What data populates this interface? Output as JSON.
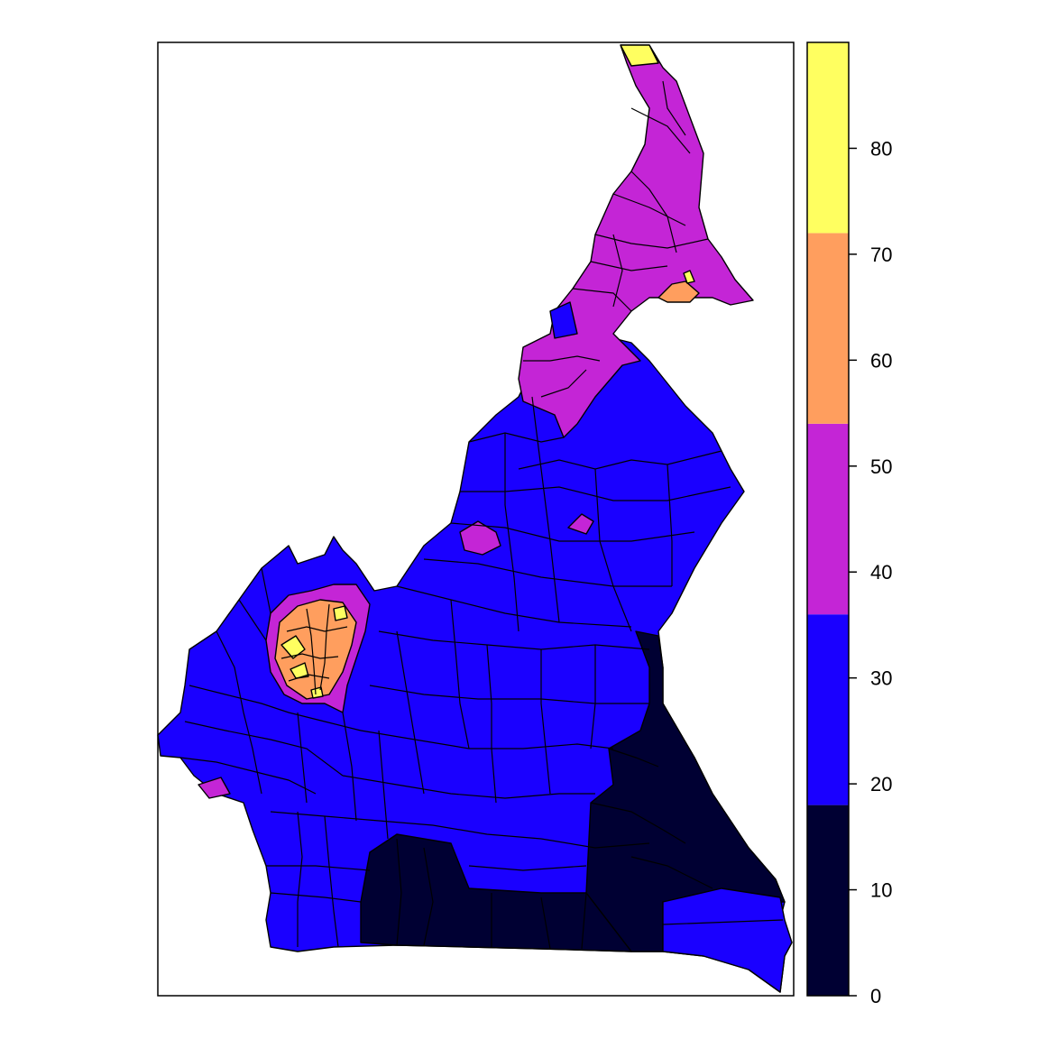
{
  "legend": {
    "breaks": [
      0,
      18,
      36,
      54,
      72,
      90
    ],
    "colors": [
      "#000033",
      "#1a00ff",
      "#c425d6",
      "#ff9e5e",
      "#ffff60"
    ],
    "tick_values": [
      0,
      10,
      20,
      30,
      40,
      50,
      60,
      70,
      80
    ],
    "tick_labels": [
      "0",
      "10",
      "20",
      "30",
      "40",
      "50",
      "60",
      "70",
      "80"
    ]
  },
  "map": {
    "region": "Cameroon",
    "unit": "administrative districts",
    "dominant_class_by_area": "18–36",
    "low_class_area": "south-east and south (0–18)",
    "high_class_area": "western highlands and far north (36–90)"
  }
}
